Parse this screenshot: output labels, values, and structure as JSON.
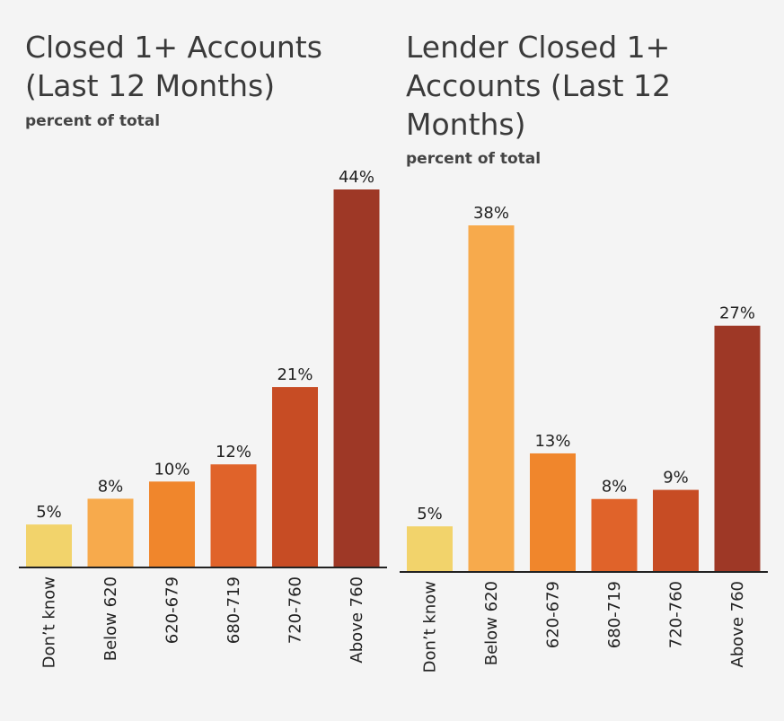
{
  "chart_data": [
    {
      "type": "bar",
      "title_lines": [
        "Closed 1+ Accounts",
        "(Last 12 Months)"
      ],
      "subtitle": "percent of total",
      "categories": [
        "Don’t know",
        "Below 620",
        "620-679",
        "680-719",
        "720-760",
        "Above 760"
      ],
      "values": [
        5,
        8,
        10,
        12,
        21,
        44
      ],
      "value_labels": [
        "5%",
        "8%",
        "10%",
        "12%",
        "21%",
        "44%"
      ],
      "colors": [
        "#f2d36b",
        "#f7aa4c",
        "#f0862c",
        "#e0632a",
        "#c74c24",
        "#9e3826"
      ],
      "ylim": [
        0,
        44
      ]
    },
    {
      "type": "bar",
      "title_lines": [
        "Lender Closed 1+",
        "Accounts (Last 12",
        "Months)"
      ],
      "subtitle": "percent of total",
      "categories": [
        "Don’t know",
        "Below 620",
        "620-679",
        "680-719",
        "720-760",
        "Above 760"
      ],
      "values": [
        5,
        38,
        13,
        8,
        9,
        27
      ],
      "value_labels": [
        "5%",
        "38%",
        "13%",
        "8%",
        "9%",
        "27%"
      ],
      "colors": [
        "#f2d36b",
        "#f7aa4c",
        "#f0862c",
        "#e0632a",
        "#c74c24",
        "#9e3826"
      ],
      "ylim": [
        0,
        38
      ]
    }
  ]
}
